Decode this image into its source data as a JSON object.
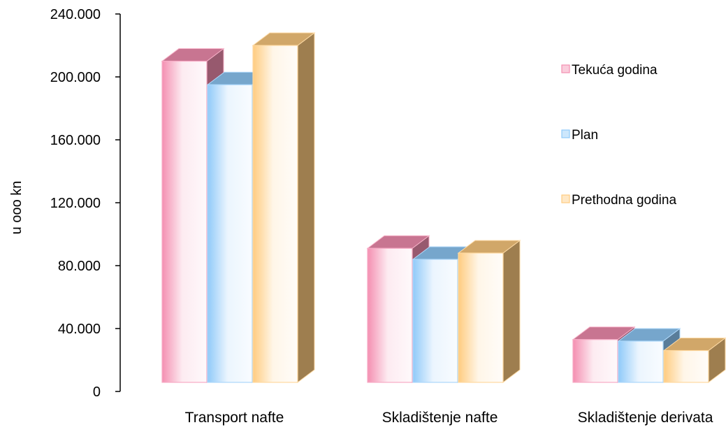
{
  "chart_data": {
    "type": "bar",
    "title": "",
    "xlabel": "",
    "ylabel": "u ooo kn",
    "ylim": [
      0,
      240000
    ],
    "yticks": [
      0,
      40000,
      80000,
      120000,
      160000,
      200000,
      240000
    ],
    "ytick_labels": [
      "0",
      "40.000",
      "80.000",
      "120.000",
      "160.000",
      "200.000",
      "240.000"
    ],
    "grid": false,
    "legend_position": "right",
    "three_d": true,
    "categories": [
      "Transport nafte",
      "Skladištenje nafte",
      "Skladištenje derivata"
    ],
    "series": [
      {
        "name": "Tekuća godina",
        "values": [
          210000,
          91000,
          33000
        ],
        "color": "#f48fb1"
      },
      {
        "name": "Plan",
        "values": [
          195000,
          84000,
          32000
        ],
        "color": "#90caf9"
      },
      {
        "name": "Prethodna godina",
        "values": [
          220000,
          88000,
          26000
        ],
        "color": "#ffcc80"
      }
    ]
  }
}
